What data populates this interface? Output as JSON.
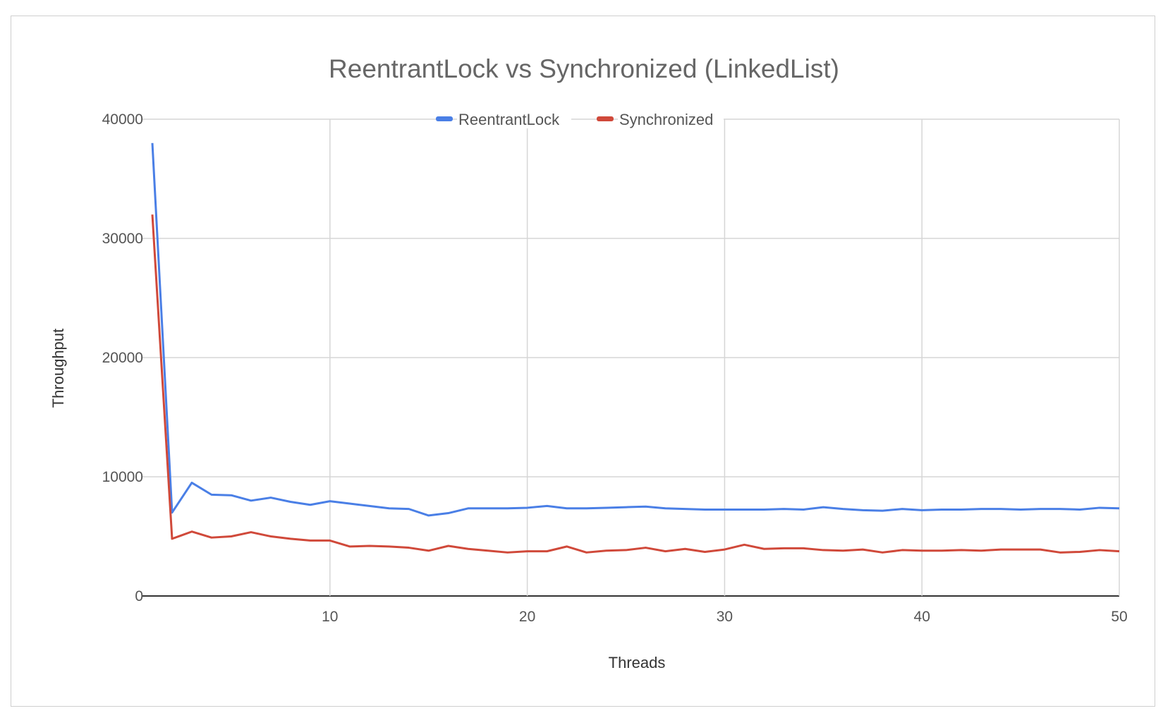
{
  "chart_data": {
    "type": "line",
    "title": "ReentrantLock vs Synchronized (LinkedList)",
    "xlabel": "Threads",
    "ylabel": "Throughput",
    "xlim": [
      1,
      50
    ],
    "ylim": [
      0,
      40000
    ],
    "x_ticks": [
      10,
      20,
      30,
      40,
      50
    ],
    "y_ticks": [
      0,
      10000,
      20000,
      30000,
      40000
    ],
    "grid": true,
    "legend_position": "top-center",
    "x": [
      1,
      2,
      3,
      4,
      5,
      6,
      7,
      8,
      9,
      10,
      11,
      12,
      13,
      14,
      15,
      16,
      17,
      18,
      19,
      20,
      21,
      22,
      23,
      24,
      25,
      26,
      27,
      28,
      29,
      30,
      31,
      32,
      33,
      34,
      35,
      36,
      37,
      38,
      39,
      40,
      41,
      42,
      43,
      44,
      45,
      46,
      47,
      48,
      49,
      50
    ],
    "series": [
      {
        "name": "ReentrantLock",
        "color": "#4a7fe6",
        "values": [
          38000,
          7000,
          9500,
          8500,
          8450,
          8000,
          8250,
          7900,
          7650,
          7950,
          7750,
          7550,
          7350,
          7300,
          6750,
          6950,
          7350,
          7350,
          7350,
          7400,
          7550,
          7350,
          7350,
          7400,
          7450,
          7500,
          7350,
          7300,
          7250,
          7250,
          7250,
          7250,
          7300,
          7250,
          7450,
          7300,
          7200,
          7150,
          7300,
          7200,
          7250,
          7250,
          7300,
          7300,
          7250,
          7300,
          7300,
          7250,
          7400,
          7350
        ]
      },
      {
        "name": "Synchronized",
        "color": "#d0493a",
        "values": [
          32000,
          4800,
          5400,
          4900,
          5000,
          5350,
          5000,
          4800,
          4650,
          4650,
          4150,
          4200,
          4150,
          4050,
          3800,
          4200,
          3950,
          3800,
          3650,
          3750,
          3750,
          4150,
          3650,
          3800,
          3850,
          4050,
          3750,
          3950,
          3700,
          3900,
          4300,
          3950,
          4000,
          4000,
          3850,
          3800,
          3900,
          3650,
          3850,
          3800,
          3800,
          3850,
          3800,
          3900,
          3900,
          3900,
          3650,
          3700,
          3850,
          3750
        ]
      }
    ]
  }
}
